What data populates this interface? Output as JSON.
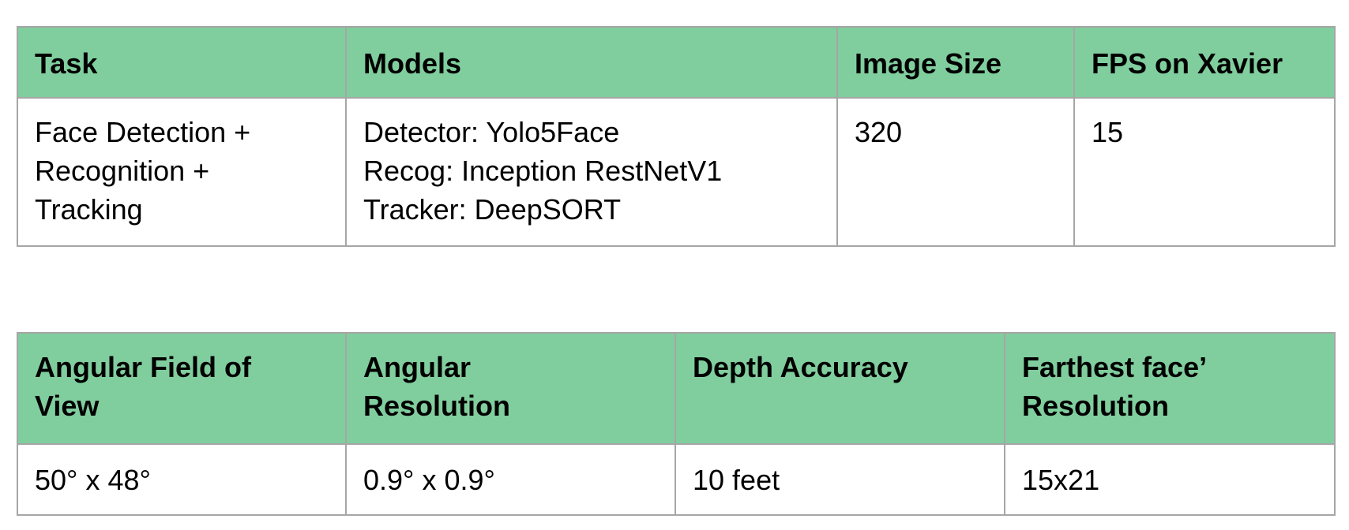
{
  "table_models": {
    "headers": [
      "Task",
      "Models",
      "Image Size",
      "FPS on Xavier"
    ],
    "rows": [
      [
        "Face Detection +\nRecognition +\nTracking",
        "Detector: Yolo5Face\nRecog: Inception RestNetV1\nTracker: DeepSORT",
        "320",
        "15"
      ]
    ]
  },
  "table_sensor": {
    "headers": [
      "Angular Field of\nView",
      "Angular\nResolution",
      "Depth Accuracy",
      "Farthest face’\nResolution"
    ],
    "rows": [
      [
        "50° x 48°",
        "0.9° x  0.9°",
        "10 feet",
        "15x21"
      ]
    ]
  },
  "colors": {
    "header_bg": "#80ce9e",
    "border": "#a6a6a6"
  }
}
